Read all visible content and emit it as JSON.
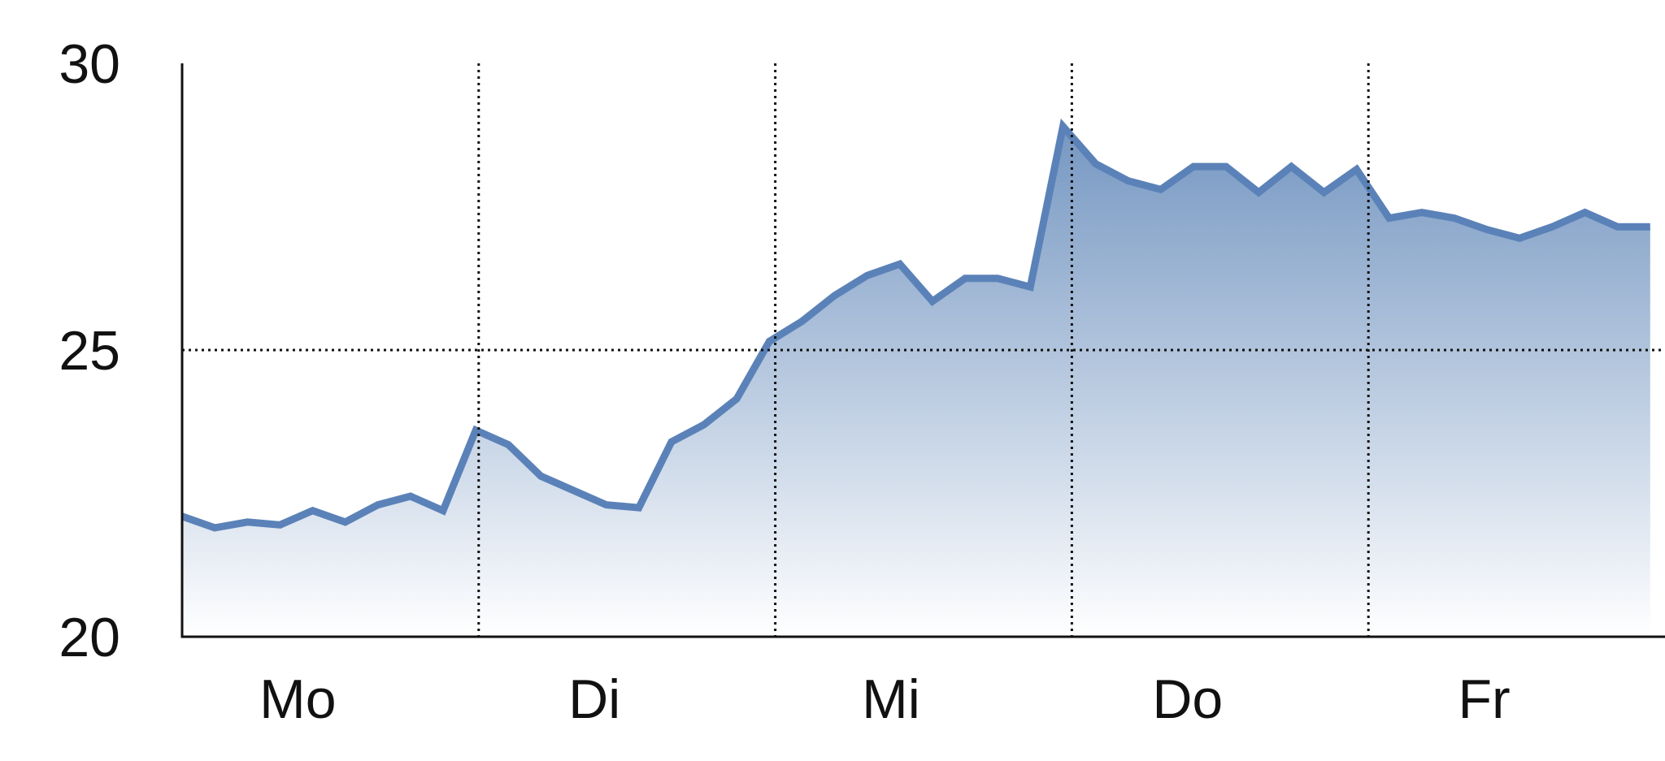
{
  "chart_data": {
    "type": "area",
    "title": "",
    "xlabel": "",
    "ylabel": "",
    "ylim": [
      20,
      30
    ],
    "xlim": [
      0,
      5
    ],
    "yticks": [
      20,
      25,
      30
    ],
    "xticks": [
      {
        "label": "Mo",
        "x": 0.5
      },
      {
        "label": "Di",
        "x": 1.5
      },
      {
        "label": "Mi",
        "x": 2.5
      },
      {
        "label": "Do",
        "x": 3.5
      },
      {
        "label": "Fr",
        "x": 4.5
      }
    ],
    "vgrid": [
      1,
      2,
      3,
      4
    ],
    "hgrid": [
      25
    ],
    "grid": true,
    "colors": {
      "line": "#5b82b8",
      "fill_top": "#6f92bf",
      "fill_bottom": "#ffffff",
      "axis": "#111111"
    },
    "series": [
      {
        "x": [
          0,
          0.11,
          0.22,
          0.33,
          0.44,
          0.55,
          0.66,
          0.77,
          0.88,
          0.99,
          1.1,
          1.21,
          1.43,
          1.54,
          1.65,
          1.76,
          1.87,
          1.98,
          2.09,
          2.2,
          2.31,
          2.42,
          2.53,
          2.64,
          2.75,
          2.86,
          2.97,
          3.08,
          3.19,
          3.3,
          3.41,
          3.52,
          3.63,
          3.74,
          3.85,
          3.96,
          4.07,
          4.18,
          4.29,
          4.4,
          4.51,
          4.62,
          4.73,
          4.84,
          4.95
        ],
        "values": [
          22.1,
          21.9,
          22.0,
          21.95,
          22.2,
          22.0,
          22.3,
          22.45,
          22.2,
          23.6,
          23.35,
          22.8,
          22.3,
          22.25,
          23.4,
          23.7,
          24.15,
          25.15,
          25.5,
          25.95,
          26.3,
          26.5,
          25.85,
          26.25,
          26.25,
          26.1,
          28.9,
          28.25,
          27.95,
          27.8,
          28.2,
          28.2,
          27.75,
          28.2,
          27.75,
          28.15,
          27.3,
          27.4,
          27.3,
          27.1,
          26.95,
          27.15,
          27.4,
          27.15,
          27.15
        ]
      }
    ]
  }
}
